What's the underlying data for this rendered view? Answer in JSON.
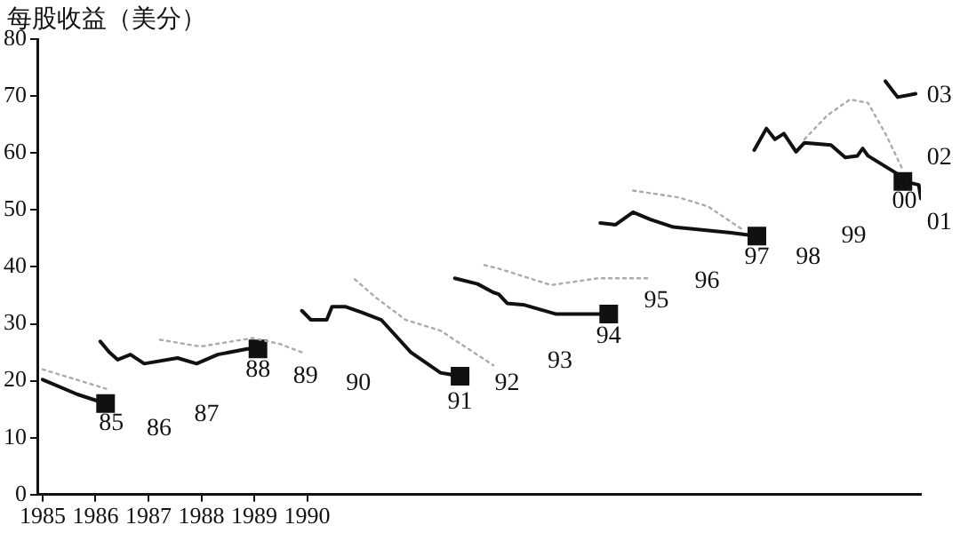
{
  "chart_data": {
    "type": "line",
    "ylabel": "每股收益（美分）",
    "xlim": [
      1984.9,
      2001.6
    ],
    "xticks": [
      1985,
      1986,
      1987,
      1988,
      1989,
      1990
    ],
    "ylim": [
      0,
      80
    ],
    "yticks": [
      0,
      10,
      20,
      30,
      40,
      50,
      60,
      70,
      80
    ],
    "grid": false,
    "legend": false,
    "marker": "none",
    "series": [
      {
        "color": "#111111",
        "line_style": "solid",
        "x": [
          1985.0,
          1985.66,
          1986.19
        ],
        "values": [
          20.2,
          17.6,
          16
        ]
      },
      {
        "color": "#aaaaaa",
        "line_style": "dotted",
        "x": [
          1985.0,
          1986.2
        ],
        "values": [
          22,
          18.6
        ]
      },
      {
        "color": "#111111",
        "line_style": "solid",
        "x": [
          1986.09,
          1986.26,
          1986.42,
          1986.66,
          1986.92,
          1987.55,
          1987.91,
          1988.31,
          1988.87,
          1989.07
        ],
        "values": [
          26.9,
          25,
          23.7,
          24.6,
          23,
          24,
          23,
          24.6,
          25.6,
          25.6
        ]
      },
      {
        "color": "#aaaaaa",
        "line_style": "dotted",
        "x": [
          1987.22,
          1987.98,
          1988.97,
          1989.47,
          1989.9
        ],
        "values": [
          27.2,
          26,
          27.5,
          26.5,
          25
        ]
      },
      {
        "color": "#111111",
        "line_style": "solid",
        "x": [
          1989.9,
          1990.07,
          1990.37,
          1990.47,
          1990.73,
          1991.03,
          1991.4,
          1991.96,
          1992.52,
          1992.89
        ],
        "values": [
          32.3,
          30.7,
          30.7,
          33,
          33,
          32,
          30.7,
          25,
          21.4,
          20.8
        ]
      },
      {
        "color": "#aaaaaa",
        "line_style": "dotted",
        "x": [
          1990.9,
          1991.3,
          1991.86,
          1992.52,
          1993.52
        ],
        "values": [
          37.8,
          34.6,
          30.7,
          28.8,
          22.7
        ]
      },
      {
        "color": "#111111",
        "line_style": "solid",
        "x": [
          1992.79,
          1993.22,
          1993.52,
          1993.62,
          1993.78,
          1994.11,
          1994.71,
          1995.6,
          1995.7
        ],
        "values": [
          38,
          37,
          35.5,
          35.2,
          33.6,
          33.3,
          31.7,
          31.7,
          31.7
        ]
      },
      {
        "color": "#aaaaaa",
        "line_style": "dotted",
        "x": [
          1993.35,
          1993.62,
          1994.61,
          1995.5,
          1996.49
        ],
        "values": [
          40.3,
          39.7,
          36.8,
          38,
          38
        ]
      },
      {
        "color": "#111111",
        "line_style": "solid",
        "x": [
          1995.54,
          1995.83,
          1996.16,
          1996.49,
          1996.92,
          1998.01,
          1998.5
        ],
        "values": [
          47.7,
          47.4,
          49.6,
          48.3,
          47,
          46,
          45.4
        ]
      },
      {
        "color": "#aaaaaa",
        "line_style": "dotted",
        "x": [
          1996.16,
          1997.02,
          1997.58,
          1998.25
        ],
        "values": [
          53.4,
          52.2,
          50.6,
          46.4
        ]
      },
      {
        "color": "#111111",
        "line_style": "solid",
        "x": [
          1998.45,
          1998.68,
          1998.84,
          1999.01,
          1999.24,
          1999.4,
          1999.9,
          2000.17,
          2000.4,
          2000.5,
          2000.6,
          2001.16,
          2001.26
        ],
        "values": [
          60.5,
          64.3,
          62.4,
          63.4,
          60.2,
          61.8,
          61.4,
          59.2,
          59.5,
          60.8,
          59.5,
          56.3,
          55
        ]
      },
      {
        "color": "#aaaaaa",
        "line_style": "dotted",
        "x": [
          1999.4,
          1999.83,
          2000.26,
          2000.6,
          2000.93,
          2001.26
        ],
        "values": [
          62.4,
          66.6,
          69.4,
          68.8,
          63.4,
          57
        ]
      },
      {
        "color": "#111111",
        "line_style": "solid",
        "x": [
          2001.42,
          2001.56,
          2001.6
        ],
        "values": [
          54.7,
          54.4,
          52
        ]
      },
      {
        "color": "#111111",
        "line_style": "solid",
        "x": [
          2000.93,
          2001.16,
          2001.5
        ],
        "values": [
          72.6,
          69.8,
          70.4
        ]
      },
      {
        "type": "scatter",
        "marker": "square",
        "color": "#111111",
        "x": [
          1986.19,
          1989.07,
          1992.89,
          1995.7,
          1998.5,
          2001.26
        ],
        "values": [
          16,
          25.6,
          20.8,
          31.7,
          45.4,
          55
        ]
      }
    ],
    "annotations": [
      "85",
      "86",
      "87",
      "88",
      "89",
      "90",
      "91",
      "92",
      "93",
      "94",
      "95",
      "96",
      "97",
      "98",
      "99",
      "00",
      "01",
      "02",
      "03"
    ]
  }
}
